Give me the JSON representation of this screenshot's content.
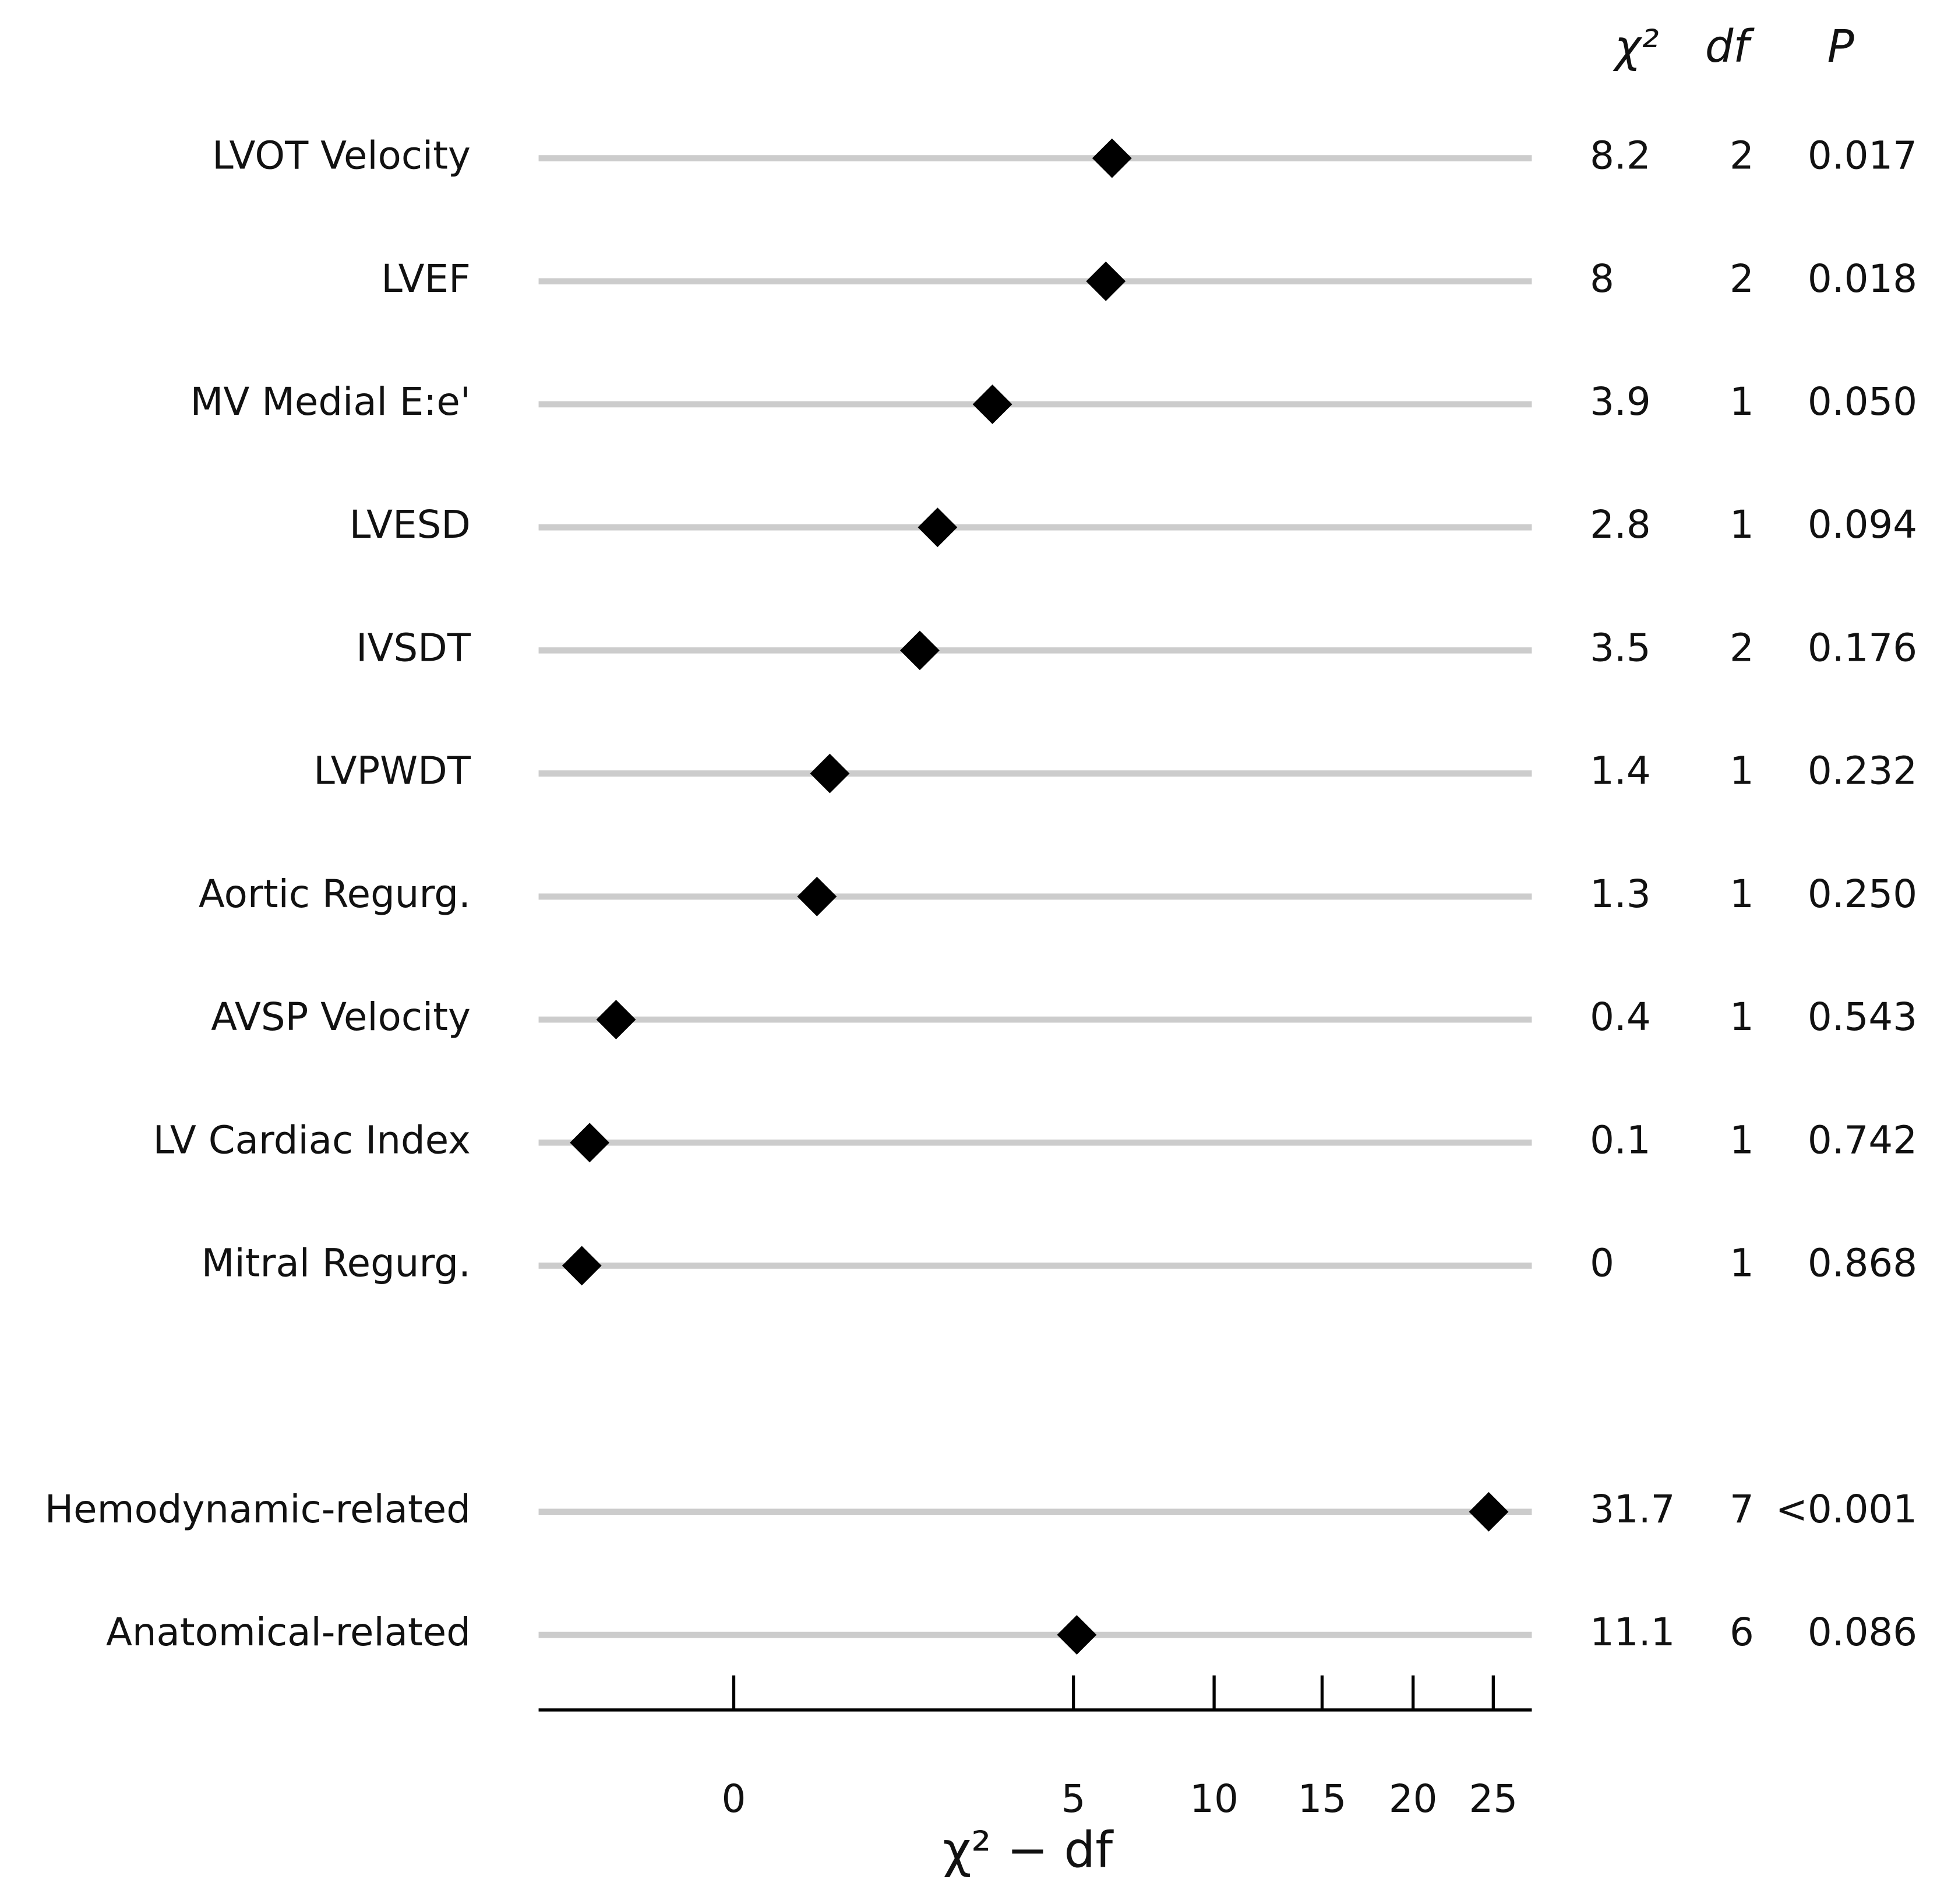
{
  "chart_data": {
    "type": "dot",
    "xlabel": "χ² − df",
    "xscale": "signed-sqrt",
    "xlim": [
      -1.65,
      27.6
    ],
    "xticks": [
      0,
      5,
      10,
      15,
      20,
      25
    ],
    "color": "#000000",
    "line_color": "#cccccc",
    "categories": [
      "LVOT Velocity",
      "LVEF",
      "MV Medial E:e'",
      "LVESD",
      "IVSDT",
      "LVPWDT",
      "Aortic Regurg.",
      "AVSP Velocity",
      "LV Cardiac Index",
      "Mitral Regurg.",
      "Hemodynamic-related",
      "Anatomical-related"
    ],
    "values": [
      6.2,
      6,
      2.9,
      1.8,
      1.5,
      0.4,
      0.3,
      -0.6,
      -0.9,
      -1,
      24.7,
      5.1
    ],
    "columns": [
      "χ²",
      "df",
      "P"
    ],
    "table": [
      [
        "8.2",
        "2",
        "0.017"
      ],
      [
        "8",
        "2",
        "0.018"
      ],
      [
        "3.9",
        "1",
        "0.050"
      ],
      [
        "2.8",
        "1",
        "0.094"
      ],
      [
        "3.5",
        "2",
        "0.176"
      ],
      [
        "1.4",
        "1",
        "0.232"
      ],
      [
        "1.3",
        "1",
        "0.250"
      ],
      [
        "0.4",
        "1",
        "0.543"
      ],
      [
        "0.1",
        "1",
        "0.742"
      ],
      [
        "0",
        "1",
        "0.868"
      ],
      [
        "31.7",
        "7",
        "<0.001"
      ],
      [
        "11.1",
        "6",
        "0.086"
      ]
    ]
  }
}
